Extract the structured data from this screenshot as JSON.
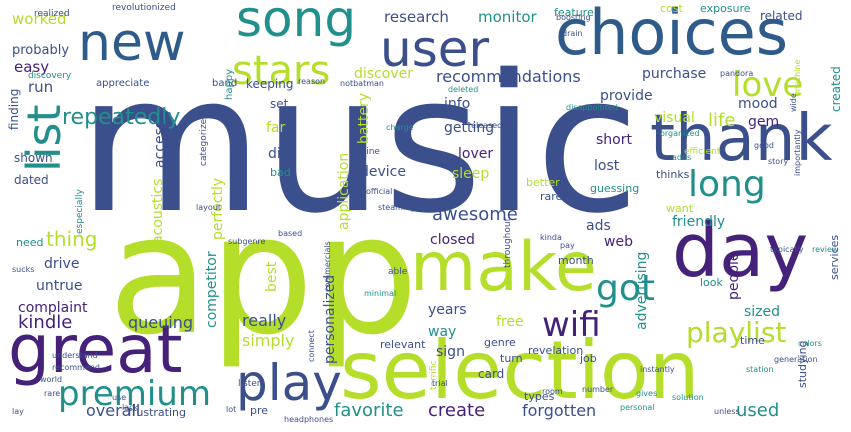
{
  "palette": {
    "indigo": "#3b4f8c",
    "navy": "#2f5b8a",
    "purple": "#46217a",
    "teal": "#21908c",
    "green": "#3fbf7f",
    "lime": "#b5de2b",
    "yellow": "#d8e219",
    "blue": "#2c728e"
  },
  "words": [
    {
      "text": "music",
      "size": 190,
      "color": "indigo"
    },
    {
      "text": "app",
      "size": 165,
      "color": "lime"
    },
    {
      "text": "selection",
      "size": 80,
      "color": "lime"
    },
    {
      "text": "choices",
      "size": 62,
      "color": "navy"
    },
    {
      "text": "great",
      "size": 66,
      "color": "purple"
    },
    {
      "text": "make",
      "size": 68,
      "color": "lime"
    },
    {
      "text": "day",
      "size": 74,
      "color": "purple"
    },
    {
      "text": "thank",
      "size": 64,
      "color": "indigo"
    },
    {
      "text": "new",
      "size": 52,
      "color": "navy"
    },
    {
      "text": "song",
      "size": 50,
      "color": "teal"
    },
    {
      "text": "user",
      "size": 50,
      "color": "indigo"
    },
    {
      "text": "play",
      "size": 50,
      "color": "indigo"
    },
    {
      "text": "list",
      "size": 46,
      "color": "teal"
    },
    {
      "text": "stars",
      "size": 40,
      "color": "lime"
    },
    {
      "text": "love",
      "size": 34,
      "color": "lime"
    },
    {
      "text": "long",
      "size": 36,
      "color": "teal"
    },
    {
      "text": "premium",
      "size": 34,
      "color": "teal"
    },
    {
      "text": "got",
      "size": 36,
      "color": "teal"
    },
    {
      "text": "wifi",
      "size": 34,
      "color": "purple"
    },
    {
      "text": "playlist",
      "size": 28,
      "color": "lime"
    },
    {
      "text": "repeatedly",
      "size": 22,
      "color": "teal"
    },
    {
      "text": "recommendations",
      "size": 16,
      "color": "indigo"
    },
    {
      "text": "awesome",
      "size": 18,
      "color": "indigo"
    },
    {
      "text": "create",
      "size": 18,
      "color": "purple"
    },
    {
      "text": "favorite",
      "size": 18,
      "color": "teal"
    },
    {
      "text": "forgotten",
      "size": 16,
      "color": "indigo"
    },
    {
      "text": "used",
      "size": 18,
      "color": "teal"
    },
    {
      "text": "thing",
      "size": 20,
      "color": "lime"
    },
    {
      "text": "kindle",
      "size": 18,
      "color": "purple"
    },
    {
      "text": "overall",
      "size": 16,
      "color": "indigo"
    },
    {
      "text": "queuing",
      "size": 16,
      "color": "indigo"
    },
    {
      "text": "really",
      "size": 16,
      "color": "indigo"
    },
    {
      "text": "simply",
      "size": 16,
      "color": "lime"
    },
    {
      "text": "life",
      "size": 18,
      "color": "lime"
    },
    {
      "text": "research",
      "size": 15,
      "color": "indigo"
    },
    {
      "text": "monitor",
      "size": 15,
      "color": "teal"
    },
    {
      "text": "worked",
      "size": 15,
      "color": "lime"
    },
    {
      "text": "easy",
      "size": 15,
      "color": "purple"
    },
    {
      "text": "run",
      "size": 15,
      "color": "indigo"
    },
    {
      "text": "probably",
      "size": 13,
      "color": "indigo"
    },
    {
      "text": "discover",
      "size": 14,
      "color": "lime"
    },
    {
      "text": "purchase",
      "size": 14,
      "color": "indigo"
    },
    {
      "text": "info",
      "size": 14,
      "color": "indigo"
    },
    {
      "text": "provide",
      "size": 14,
      "color": "indigo"
    },
    {
      "text": "getting",
      "size": 14,
      "color": "indigo"
    },
    {
      "text": "visual",
      "size": 14,
      "color": "lime"
    },
    {
      "text": "short",
      "size": 14,
      "color": "purple"
    },
    {
      "text": "mood",
      "size": 14,
      "color": "indigo"
    },
    {
      "text": "gem",
      "size": 14,
      "color": "purple"
    },
    {
      "text": "lost",
      "size": 14,
      "color": "indigo"
    },
    {
      "text": "lover",
      "size": 14,
      "color": "purple"
    },
    {
      "text": "sleep",
      "size": 14,
      "color": "lime"
    },
    {
      "text": "device",
      "size": 14,
      "color": "indigo"
    },
    {
      "text": "ads",
      "size": 14,
      "color": "indigo"
    },
    {
      "text": "web",
      "size": 14,
      "color": "purple"
    },
    {
      "text": "closed",
      "size": 14,
      "color": "purple"
    },
    {
      "text": "friendly",
      "size": 14,
      "color": "teal"
    },
    {
      "text": "people",
      "size": 14,
      "color": "purple"
    },
    {
      "text": "sized",
      "size": 14,
      "color": "teal"
    },
    {
      "text": "years",
      "size": 14,
      "color": "indigo"
    },
    {
      "text": "free",
      "size": 14,
      "color": "lime"
    },
    {
      "text": "way",
      "size": 14,
      "color": "teal"
    },
    {
      "text": "sign",
      "size": 14,
      "color": "indigo"
    },
    {
      "text": "drive",
      "size": 14,
      "color": "indigo"
    },
    {
      "text": "untrue",
      "size": 14,
      "color": "indigo"
    },
    {
      "text": "complaint",
      "size": 14,
      "color": "purple"
    },
    {
      "text": "shown",
      "size": 12,
      "color": "indigo"
    },
    {
      "text": "dated",
      "size": 12,
      "color": "indigo"
    },
    {
      "text": "need",
      "size": 11,
      "color": "teal"
    },
    {
      "text": "access",
      "size": 14,
      "color": "indigo"
    },
    {
      "text": "acoustics",
      "size": 14,
      "color": "lime"
    },
    {
      "text": "perfectly",
      "size": 14,
      "color": "lime"
    },
    {
      "text": "application",
      "size": 14,
      "color": "lime"
    },
    {
      "text": "battery",
      "size": 14,
      "color": "lime"
    },
    {
      "text": "personalized",
      "size": 14,
      "color": "indigo"
    },
    {
      "text": "competitor",
      "size": 14,
      "color": "teal"
    },
    {
      "text": "advertising",
      "size": 14,
      "color": "teal"
    },
    {
      "text": "best",
      "size": 14,
      "color": "lime"
    },
    {
      "text": "dig",
      "size": 14,
      "color": "indigo"
    },
    {
      "text": "far",
      "size": 14,
      "color": "lime"
    },
    {
      "text": "set",
      "size": 12,
      "color": "indigo"
    },
    {
      "text": "bad",
      "size": 11,
      "color": "teal"
    },
    {
      "text": "keeping",
      "size": 12,
      "color": "indigo"
    },
    {
      "text": "finding",
      "size": 12,
      "color": "indigo"
    },
    {
      "text": "created",
      "size": 12,
      "color": "teal"
    },
    {
      "text": "related",
      "size": 12,
      "color": "indigo"
    },
    {
      "text": "cost",
      "size": 11,
      "color": "lime"
    },
    {
      "text": "exposure",
      "size": 11,
      "color": "teal"
    },
    {
      "text": "feature",
      "size": 11,
      "color": "teal"
    },
    {
      "text": "thinks",
      "size": 11,
      "color": "indigo"
    },
    {
      "text": "want",
      "size": 11,
      "color": "lime"
    },
    {
      "text": "rarely",
      "size": 11,
      "color": "indigo"
    },
    {
      "text": "better",
      "size": 11,
      "color": "lime"
    },
    {
      "text": "guessing",
      "size": 11,
      "color": "teal"
    },
    {
      "text": "month",
      "size": 11,
      "color": "indigo"
    },
    {
      "text": "revelation",
      "size": 11,
      "color": "indigo"
    },
    {
      "text": "relevant",
      "size": 11,
      "color": "indigo"
    },
    {
      "text": "genre",
      "size": 11,
      "color": "indigo"
    },
    {
      "text": "turn",
      "size": 11,
      "color": "indigo"
    },
    {
      "text": "card",
      "size": 12,
      "color": "indigo"
    },
    {
      "text": "job",
      "size": 11,
      "color": "indigo"
    },
    {
      "text": "types",
      "size": 11,
      "color": "indigo"
    },
    {
      "text": "look",
      "size": 11,
      "color": "teal"
    },
    {
      "text": "time",
      "size": 11,
      "color": "indigo"
    },
    {
      "text": "services",
      "size": 11,
      "color": "indigo"
    },
    {
      "text": "studying",
      "size": 11,
      "color": "indigo"
    },
    {
      "text": "frustrating",
      "size": 11,
      "color": "indigo"
    },
    {
      "text": "pre",
      "size": 11,
      "color": "indigo"
    },
    {
      "text": "happy",
      "size": 10,
      "color": "teal"
    },
    {
      "text": "band",
      "size": 10,
      "color": "indigo"
    },
    {
      "text": "appreciate",
      "size": 10,
      "color": "indigo"
    },
    {
      "text": "discovery",
      "size": 9,
      "color": "teal"
    },
    {
      "text": "realized",
      "size": 9,
      "color": "indigo"
    },
    {
      "text": "revolutionized",
      "size": 9,
      "color": "indigo"
    },
    {
      "text": "deleted",
      "size": 8,
      "color": "teal"
    },
    {
      "text": "reason",
      "size": 8,
      "color": "indigo"
    },
    {
      "text": "notbatman",
      "size": 8,
      "color": "indigo"
    },
    {
      "text": "released",
      "size": 8,
      "color": "indigo"
    },
    {
      "text": "disappointed",
      "size": 8,
      "color": "teal"
    },
    {
      "text": "organized",
      "size": 8,
      "color": "teal"
    },
    {
      "text": "efficient",
      "size": 9,
      "color": "lime"
    },
    {
      "text": "pandora",
      "size": 8,
      "color": "indigo"
    },
    {
      "text": "boosting",
      "size": 8,
      "color": "indigo"
    },
    {
      "text": "drain",
      "size": 8,
      "color": "indigo"
    },
    {
      "text": "offline",
      "size": 9,
      "color": "indigo"
    },
    {
      "text": "official",
      "size": 8,
      "color": "indigo"
    },
    {
      "text": "charge",
      "size": 8,
      "color": "teal"
    },
    {
      "text": "steaming",
      "size": 8,
      "color": "indigo"
    },
    {
      "text": "categorize",
      "size": 9,
      "color": "indigo"
    },
    {
      "text": "especially",
      "size": 9,
      "color": "teal"
    },
    {
      "text": "throughout",
      "size": 9,
      "color": "indigo"
    },
    {
      "text": "subgenre",
      "size": 8,
      "color": "indigo"
    },
    {
      "text": "layout",
      "size": 8,
      "color": "indigo"
    },
    {
      "text": "based",
      "size": 8,
      "color": "indigo"
    },
    {
      "text": "able",
      "size": 9,
      "color": "indigo"
    },
    {
      "text": "sucks",
      "size": 8,
      "color": "indigo"
    },
    {
      "text": "understand",
      "size": 8,
      "color": "indigo"
    },
    {
      "text": "commercials",
      "size": 8,
      "color": "indigo"
    },
    {
      "text": "minimal",
      "size": 8,
      "color": "teal"
    },
    {
      "text": "kinda",
      "size": 8,
      "color": "indigo"
    },
    {
      "text": "pay",
      "size": 8,
      "color": "indigo"
    },
    {
      "text": "good",
      "size": 8,
      "color": "indigo"
    },
    {
      "text": "story",
      "size": 8,
      "color": "indigo"
    },
    {
      "text": "adds",
      "size": 8,
      "color": "teal"
    },
    {
      "text": "importantly",
      "size": 8,
      "color": "indigo"
    },
    {
      "text": "typically",
      "size": 8,
      "color": "indigo"
    },
    {
      "text": "review",
      "size": 8,
      "color": "teal"
    },
    {
      "text": "colors",
      "size": 8,
      "color": "teal"
    },
    {
      "text": "station",
      "size": 8,
      "color": "teal"
    },
    {
      "text": "generation",
      "size": 8,
      "color": "indigo"
    },
    {
      "text": "instantly",
      "size": 8,
      "color": "indigo"
    },
    {
      "text": "gives",
      "size": 8,
      "color": "teal"
    },
    {
      "text": "number",
      "size": 8,
      "color": "indigo"
    },
    {
      "text": "recommend",
      "size": 8,
      "color": "indigo"
    },
    {
      "text": "world",
      "size": 8,
      "color": "indigo"
    },
    {
      "text": "listen",
      "size": 9,
      "color": "indigo"
    },
    {
      "text": "use",
      "size": 8,
      "color": "indigo"
    },
    {
      "text": "lack",
      "size": 8,
      "color": "indigo"
    },
    {
      "text": "connect",
      "size": 8,
      "color": "indigo"
    },
    {
      "text": "terrific",
      "size": 9,
      "color": "lime"
    },
    {
      "text": "room",
      "size": 8,
      "color": "indigo"
    },
    {
      "text": "personal",
      "size": 8,
      "color": "teal"
    },
    {
      "text": "solution",
      "size": 8,
      "color": "teal"
    },
    {
      "text": "unless",
      "size": 8,
      "color": "indigo"
    },
    {
      "text": "rare",
      "size": 8,
      "color": "indigo"
    },
    {
      "text": "lot",
      "size": 8,
      "color": "indigo"
    },
    {
      "text": "lay",
      "size": 8,
      "color": "indigo"
    },
    {
      "text": "headphones",
      "size": 8,
      "color": "indigo"
    },
    {
      "text": "trial",
      "size": 8,
      "color": "indigo"
    },
    {
      "text": "machine",
      "size": 8,
      "color": "lime"
    },
    {
      "text": "wide",
      "size": 8,
      "color": "indigo"
    }
  ]
}
